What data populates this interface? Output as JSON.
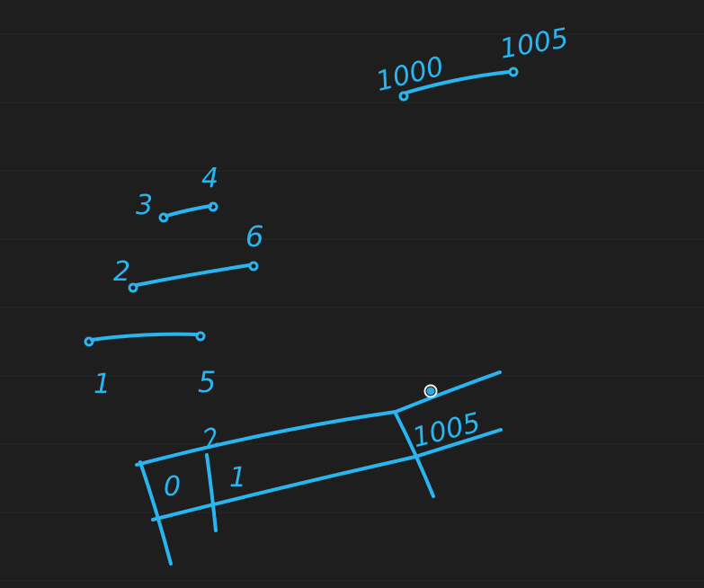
{
  "colors": {
    "background": "#1e1e1f",
    "ruled_lines": "#262627",
    "ink": "#29b6f0",
    "cursor_fill": "#2fa7da",
    "cursor_ring": "#e8f6fd"
  },
  "intervals": [
    {
      "start": "1",
      "end": "5"
    },
    {
      "start": "2",
      "end": "6"
    },
    {
      "start": "3",
      "end": "4"
    },
    {
      "start": "1000",
      "end": "1005"
    }
  ],
  "array_sketch": {
    "cells": [
      "0",
      "1"
    ],
    "index_mark": "2",
    "last_cell": "1005"
  }
}
